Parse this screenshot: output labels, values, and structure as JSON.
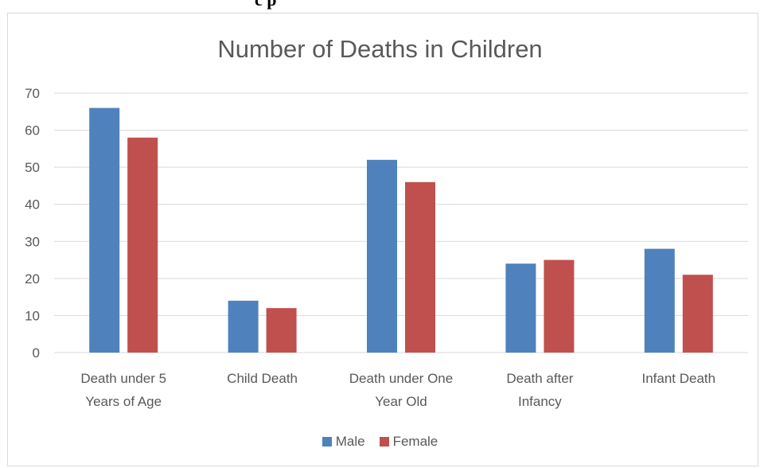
{
  "header_fragment": "c p",
  "chart_data": {
    "type": "bar",
    "title": "Number of Deaths in Children",
    "categories": [
      [
        "Death under 5",
        "Years of Age"
      ],
      [
        "Child Death"
      ],
      [
        "Death under One",
        "Year Old"
      ],
      [
        "Death after",
        "Infancy"
      ],
      [
        "Infant Death"
      ]
    ],
    "series": [
      {
        "name": "Male",
        "color": "#4f81bd",
        "values": [
          66,
          14,
          52,
          24,
          28
        ]
      },
      {
        "name": "Female",
        "color": "#c0504d",
        "values": [
          58,
          12,
          46,
          25,
          21
        ]
      }
    ],
    "ylim": [
      0,
      70
    ],
    "yticks": [
      0,
      10,
      20,
      30,
      40,
      50,
      60,
      70
    ],
    "grid": true,
    "legend_position": "bottom"
  }
}
